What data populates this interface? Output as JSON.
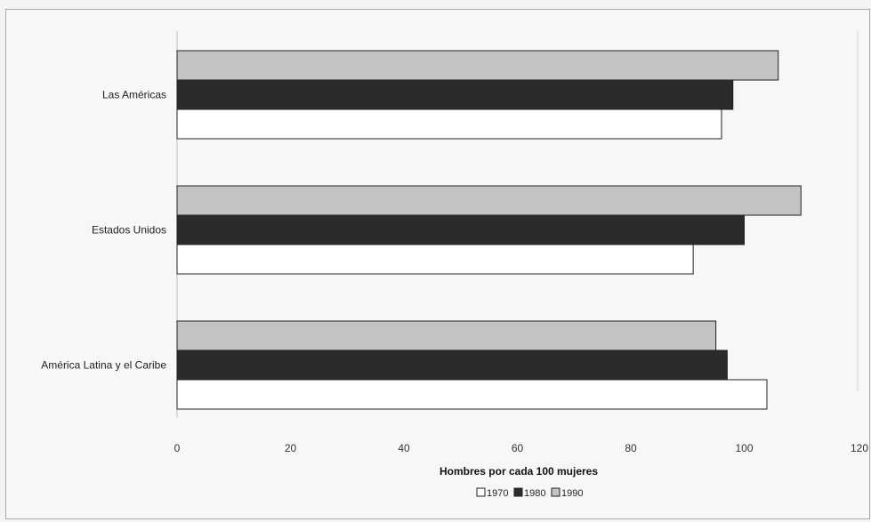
{
  "chart_data": {
    "type": "bar",
    "orientation": "horizontal",
    "categories": [
      "Las Américas",
      "Estados Unidos",
      "América Latina y el Caribe"
    ],
    "series": [
      {
        "name": "1970",
        "values": [
          96,
          91,
          104
        ],
        "color": "#ffffff"
      },
      {
        "name": "1980",
        "values": [
          98,
          100,
          97
        ],
        "color": "#2b2b2b"
      },
      {
        "name": "1990",
        "values": [
          106,
          110,
          95
        ],
        "color": "#c4c4c4"
      }
    ],
    "xlabel": "Hombres por cada 100 mujeres",
    "xlim": [
      0,
      120
    ],
    "xticks": [
      "0",
      "20",
      "40",
      "60",
      "80",
      "100",
      "120"
    ],
    "grid": false,
    "legend_position": "bottom"
  }
}
